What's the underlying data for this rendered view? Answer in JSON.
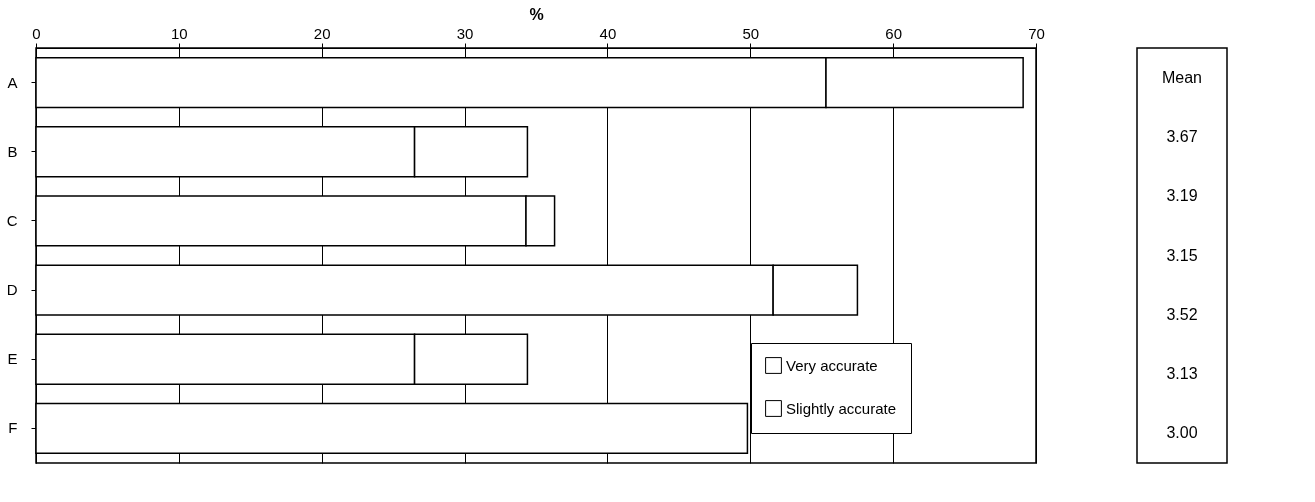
{
  "chart_data": [
    {
      "type": "bar",
      "orientation": "horizontal",
      "stacked": true,
      "xlabel": "%",
      "categories": [
        "A",
        "B",
        "C",
        "D",
        "E",
        "F"
      ],
      "xlim": [
        0,
        70
      ],
      "xticks": [
        0,
        10,
        20,
        30,
        40,
        50,
        60,
        70
      ],
      "grid": "x",
      "legend": "bottom right",
      "series": [
        {
          "name": "Very accurate",
          "color": "#ffffff",
          "values": [
            55.3,
            26.5,
            34.3,
            51.6,
            26.5,
            49.8
          ]
        },
        {
          "name": "Slightly accurate",
          "color": "#ffffff",
          "values": [
            13.8,
            7.9,
            2.0,
            5.9,
            7.9,
            null
          ]
        }
      ]
    },
    {
      "type": "other",
      "title": "Mean",
      "annotations": [
        "3.67",
        "3.19",
        "3.15",
        "3.52",
        "3.13",
        "3.00"
      ]
    }
  ]
}
